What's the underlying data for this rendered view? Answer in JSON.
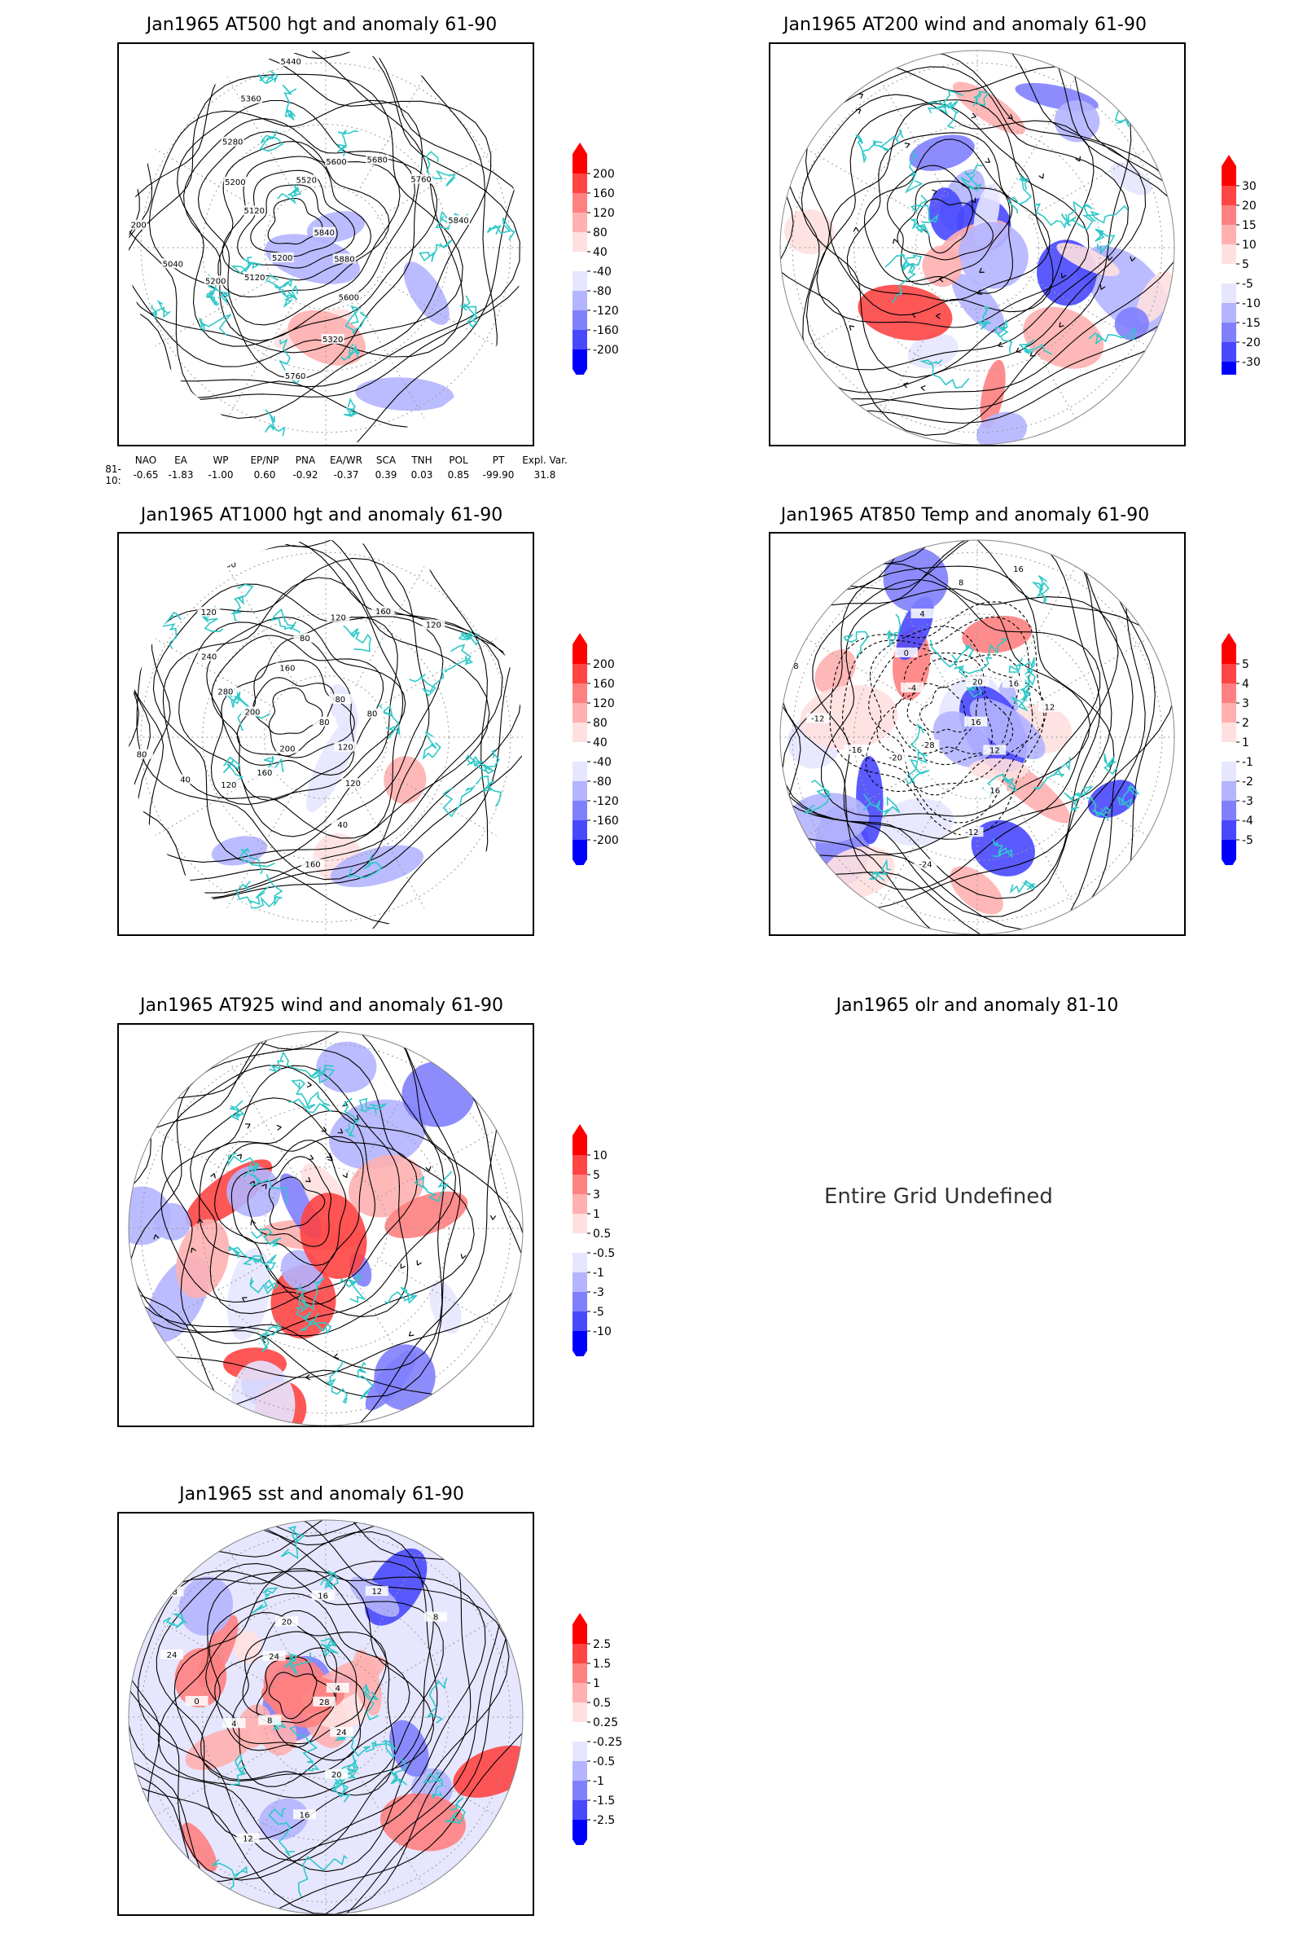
{
  "panels": [
    {
      "id": "p500",
      "title": "Jan1965 AT500 hgt and anomaly 61-90",
      "kind": "height",
      "contour_labels": [
        "5840",
        "5880",
        "5600",
        "5320",
        "5760",
        "5200",
        "5120",
        "5200",
        "5040",
        "5200",
        "5120",
        "5200",
        "5280",
        "5360",
        "5440",
        "5520",
        "5600",
        "5680",
        "5760",
        "5840"
      ],
      "colorbar": {
        "labels": [
          "200",
          "160",
          "120",
          "80",
          "40",
          "-40",
          "-80",
          "-120",
          "-160",
          "-200"
        ]
      }
    },
    {
      "id": "p200",
      "title": "Jan1965 AT200 wind and anomaly 61-90",
      "kind": "wind",
      "colorbar": {
        "labels": [
          "30",
          "20",
          "15",
          "10",
          "5",
          "-5",
          "-10",
          "-15",
          "-20",
          "-30"
        ]
      }
    },
    {
      "id": "p1000",
      "title": "Jan1965 AT1000 hgt and anomaly 61-90",
      "kind": "height",
      "contour_labels": [
        "80",
        "120",
        "120",
        "40",
        "160",
        "200",
        "160",
        "120",
        "40",
        "80",
        "200",
        "280",
        "240",
        "120",
        "200",
        "160",
        "80",
        "120",
        "160",
        "120",
        "80",
        "80"
      ],
      "colorbar": {
        "labels": [
          "200",
          "160",
          "120",
          "80",
          "40",
          "-40",
          "-80",
          "-120",
          "-160",
          "-200"
        ]
      }
    },
    {
      "id": "p850",
      "title": "Jan1965 AT850 Temp and anomaly 61-90",
      "kind": "temp",
      "contour_labels": [
        "16",
        "12",
        "16",
        "-12",
        "-24",
        "-28",
        "-20",
        "-16",
        "-12",
        "-8",
        "-4",
        "0",
        "4",
        "8",
        "16",
        "20",
        "16",
        "12"
      ],
      "colorbar": {
        "labels": [
          "5",
          "4",
          "3",
          "2",
          "1",
          "-1",
          "-2",
          "-3",
          "-4",
          "-5"
        ]
      }
    },
    {
      "id": "p925",
      "title": "Jan1965 AT925 wind and anomaly 61-90",
      "kind": "wind",
      "colorbar": {
        "labels": [
          "10",
          "5",
          "3",
          "1",
          "0.5",
          "-0.5",
          "-1",
          "-3",
          "-5",
          "-10"
        ]
      }
    },
    {
      "id": "polr",
      "title": "Jan1965 olr and anomaly 81-10",
      "kind": "undefined",
      "message": "Entire Grid Undefined"
    },
    {
      "id": "psst",
      "title": "Jan1965 sst and anomaly 61-90",
      "kind": "sst",
      "contour_labels": [
        "28",
        "24",
        "20",
        "16",
        "12",
        "8",
        "4",
        "0",
        "24",
        "28",
        "24",
        "20",
        "16",
        "12",
        "8",
        "4"
      ],
      "colorbar": {
        "labels": [
          "2.5",
          "1.5",
          "1",
          "0.5",
          "0.25",
          "-0.25",
          "-0.5",
          "-1",
          "-1.5",
          "-2.5"
        ]
      }
    }
  ],
  "indices": {
    "header": [
      "NAO",
      "EA",
      "WP",
      "EP/NP",
      "PNA",
      "EA/WR",
      "SCA",
      "TNH",
      "POL",
      "PT",
      "Expl. Var."
    ],
    "row_label": "81-10:",
    "values": [
      "-0.65",
      "-1.83",
      "-1.00",
      "0.60",
      "-0.92",
      "-0.37",
      "0.39",
      "0.03",
      "0.85",
      "-99.90",
      "31.8"
    ]
  },
  "colors": {
    "positive_scale": [
      "#ff0000",
      "#ff4444",
      "#ff8080",
      "#ffb0b0",
      "#ffe0e0"
    ],
    "negative_scale": [
      "#e6e6ff",
      "#b4b4ff",
      "#8080ff",
      "#4848ff",
      "#0000ff"
    ],
    "coastline": "#2fc8c8",
    "contour": "#000000"
  },
  "chart_data": [
    {
      "type": "heatmap",
      "title": "Jan1965 AT500 hgt and anomaly 61-90",
      "colorbar_levels": [
        200,
        160,
        120,
        80,
        40,
        -40,
        -80,
        -120,
        -160,
        -200
      ]
    },
    {
      "type": "heatmap",
      "title": "Jan1965 AT200 wind and anomaly 61-90",
      "colorbar_levels": [
        30,
        20,
        15,
        10,
        5,
        -5,
        -10,
        -15,
        -20,
        -30
      ]
    },
    {
      "type": "heatmap",
      "title": "Jan1965 AT1000 hgt and anomaly 61-90",
      "colorbar_levels": [
        200,
        160,
        120,
        80,
        40,
        -40,
        -80,
        -120,
        -160,
        -200
      ]
    },
    {
      "type": "heatmap",
      "title": "Jan1965 AT850 Temp and anomaly 61-90",
      "colorbar_levels": [
        5,
        4,
        3,
        2,
        1,
        -1,
        -2,
        -3,
        -4,
        -5
      ]
    },
    {
      "type": "heatmap",
      "title": "Jan1965 AT925 wind and anomaly 61-90",
      "colorbar_levels": [
        10,
        5,
        3,
        1,
        0.5,
        -0.5,
        -1,
        -3,
        -5,
        -10
      ]
    },
    {
      "type": "heatmap",
      "title": "Jan1965 olr and anomaly 81-10",
      "colorbar_levels": []
    },
    {
      "type": "heatmap",
      "title": "Jan1965 sst and anomaly 61-90",
      "colorbar_levels": [
        2.5,
        1.5,
        1,
        0.5,
        0.25,
        -0.25,
        -0.5,
        -1,
        -1.5,
        -2.5
      ]
    }
  ]
}
